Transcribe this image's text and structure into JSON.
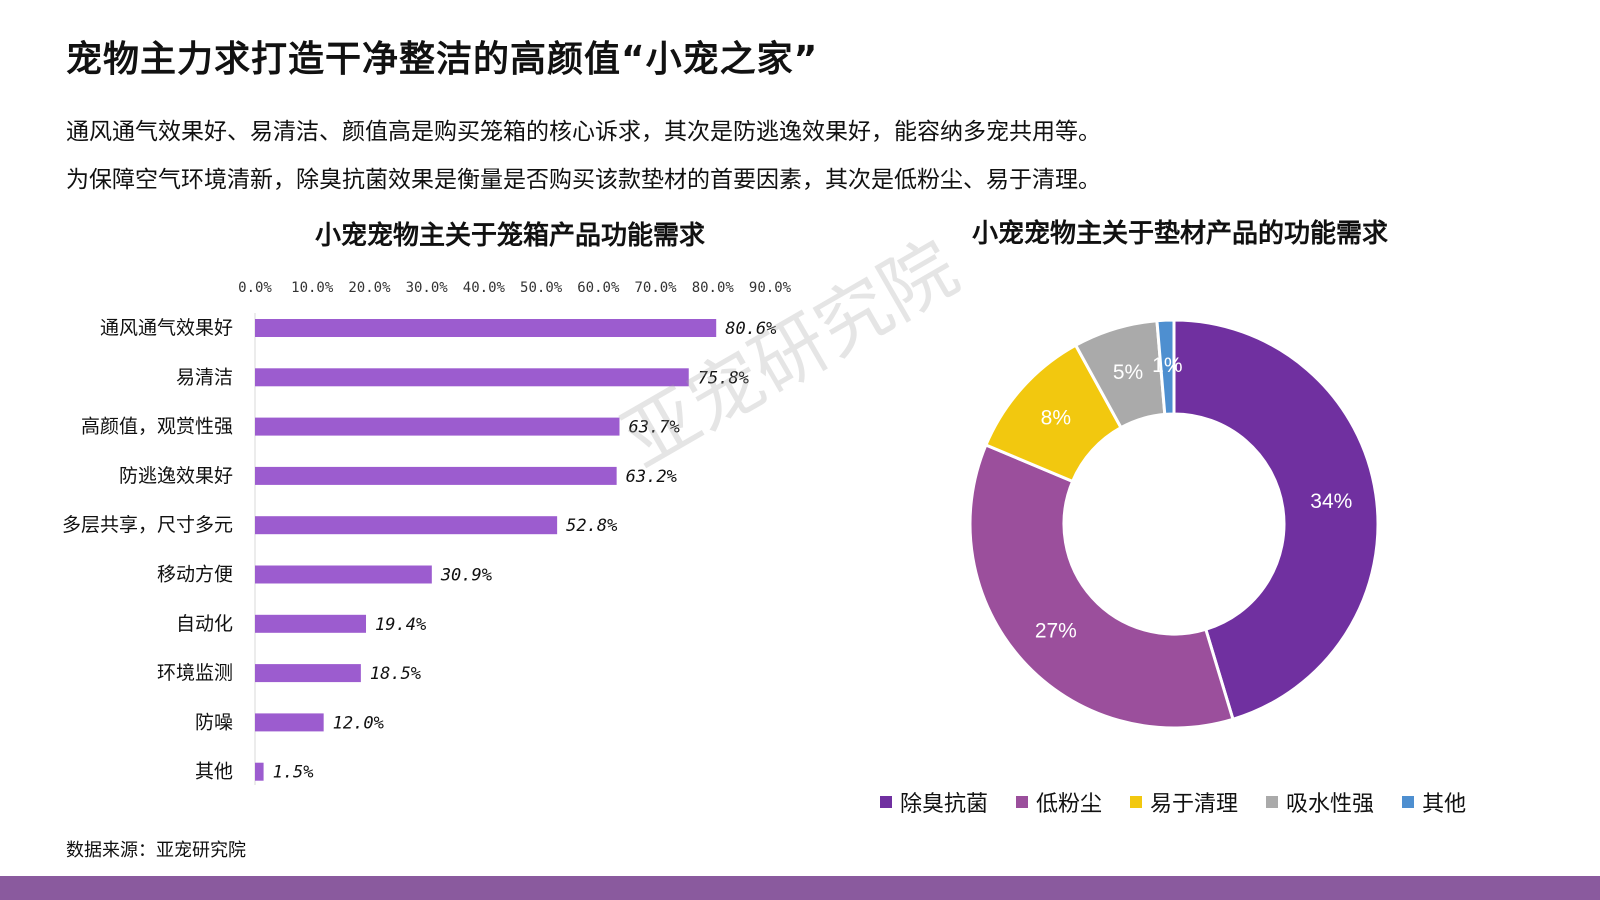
{
  "page": {
    "title": "宠物主力求打造干净整洁的高颜值“小宠之家”",
    "desc1": "通风通气效果好、易清洁、颜值高是购买笼箱的核心诉求，其次是防逃逸效果好，能容纳多宠共用等。",
    "desc2": "为保障空气环境清新，除臭抗菌效果是衡量是否购买该款垫材的首要因素，其次是低粉尘、易于清理。",
    "watermark": "亚宠研究院",
    "source": "数据来源：亚宠研究院"
  },
  "chart_data": [
    {
      "type": "bar",
      "orientation": "horizontal",
      "title": "小宠宠物主关于笼箱产品功能需求",
      "categories": [
        "通风通气效果好",
        "易清洁",
        "高颜值，观赏性强",
        "防逃逸效果好",
        "多层共享，尺寸多元",
        "移动方便",
        "自动化",
        "环境监测",
        "防噪",
        "其他"
      ],
      "values": [
        80.6,
        75.8,
        63.7,
        63.2,
        52.8,
        30.9,
        19.4,
        18.5,
        12.0,
        1.5
      ],
      "value_labels": [
        "80.6%",
        "75.8%",
        "63.7%",
        "63.2%",
        "52.8%",
        "30.9%",
        "19.4%",
        "18.5%",
        "12.0%",
        "1.5%"
      ],
      "xlim": [
        0,
        90
      ],
      "xticks": [
        "0.0%",
        "10.0%",
        "20.0%",
        "30.0%",
        "40.0%",
        "50.0%",
        "60.0%",
        "70.0%",
        "80.0%",
        "90.0%"
      ],
      "axis_position": "top",
      "grid": false,
      "bar_color": "#9c5ccf"
    },
    {
      "type": "pie",
      "variant": "donut",
      "title": "小宠宠物主关于垫材产品的功能需求",
      "labels": [
        "除臭抗菌",
        "低粉尘",
        "易于清理",
        "吸水性强",
        "其他"
      ],
      "values": [
        34,
        27,
        8,
        5,
        1
      ],
      "value_labels": [
        "34%",
        "27%",
        "8%",
        "5%",
        "1%"
      ],
      "colors": [
        "#7030a0",
        "#9b4f9c",
        "#f2c80f",
        "#aaaaaa",
        "#4e8fd0"
      ],
      "legend_position": "bottom"
    }
  ]
}
